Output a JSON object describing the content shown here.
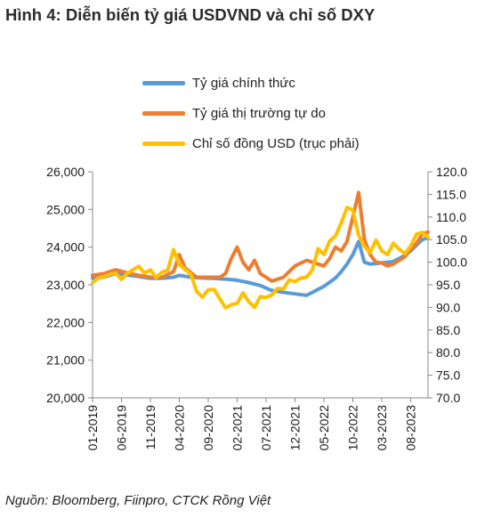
{
  "figure": {
    "title": "Hình 4: Diễn biến tỷ giá USDVND và chỉ số DXY",
    "source": "Nguồn: Bloomberg, Fiinpro, CTCK Rồng Việt"
  },
  "chart_data": {
    "type": "line",
    "title": "Hình 4: Diễn biến tỷ giá USDVND và chỉ số DXY",
    "x_label": "",
    "y_left_label": "",
    "y_right_label": "",
    "x_range": [
      "2019-01",
      "2023-11"
    ],
    "x_ticks": [
      "01-2019",
      "06-2019",
      "11-2019",
      "04-2020",
      "09-2020",
      "02-2021",
      "07-2021",
      "12-2021",
      "05-2022",
      "10-2022",
      "03-2023",
      "08-2023"
    ],
    "y_left_range": [
      20000,
      26000
    ],
    "y_left_ticks": [
      "20,000",
      "21,000",
      "22,000",
      "23,000",
      "24,000",
      "25,000",
      "26,000"
    ],
    "y_right_range": [
      70,
      120
    ],
    "y_right_ticks": [
      "70.0",
      "75.0",
      "80.0",
      "85.0",
      "90.0",
      "95.0",
      "100.0",
      "105.0",
      "110.0",
      "115.0",
      "120.0"
    ],
    "legend_position": "top-center",
    "grid": false,
    "series": [
      {
        "name": "Tỷ giá chính thức",
        "color": "#5b9bd5",
        "axis": "left",
        "points": [
          [
            "2019-01",
            23180
          ],
          [
            "2019-03",
            23200
          ],
          [
            "2019-05",
            23300
          ],
          [
            "2019-07",
            23260
          ],
          [
            "2019-09",
            23220
          ],
          [
            "2019-11",
            23170
          ],
          [
            "2020-01",
            23175
          ],
          [
            "2020-03",
            23200
          ],
          [
            "2020-04",
            23250
          ],
          [
            "2020-06",
            23200
          ],
          [
            "2020-08",
            23180
          ],
          [
            "2020-10",
            23170
          ],
          [
            "2020-12",
            23150
          ],
          [
            "2021-02",
            23120
          ],
          [
            "2021-04",
            23060
          ],
          [
            "2021-06",
            22980
          ],
          [
            "2021-08",
            22850
          ],
          [
            "2021-10",
            22800
          ],
          [
            "2021-12",
            22760
          ],
          [
            "2022-02",
            22720
          ],
          [
            "2022-03",
            22800
          ],
          [
            "2022-05",
            22960
          ],
          [
            "2022-07",
            23180
          ],
          [
            "2022-08",
            23350
          ],
          [
            "2022-09",
            23550
          ],
          [
            "2022-10",
            23800
          ],
          [
            "2022-11",
            24150
          ],
          [
            "2022-12",
            23600
          ],
          [
            "2023-01",
            23550
          ],
          [
            "2023-03",
            23580
          ],
          [
            "2023-05",
            23620
          ],
          [
            "2023-07",
            23780
          ],
          [
            "2023-08",
            23900
          ],
          [
            "2023-09",
            24050
          ],
          [
            "2023-10",
            24200
          ],
          [
            "2023-11",
            24250
          ]
        ]
      },
      {
        "name": "Tỷ giá thị trường tự do",
        "color": "#ed7d31",
        "axis": "left",
        "points": [
          [
            "2019-01",
            23250
          ],
          [
            "2019-03",
            23300
          ],
          [
            "2019-05",
            23400
          ],
          [
            "2019-07",
            23320
          ],
          [
            "2019-09",
            23250
          ],
          [
            "2019-11",
            23200
          ],
          [
            "2020-01",
            23200
          ],
          [
            "2020-03",
            23350
          ],
          [
            "2020-04",
            23800
          ],
          [
            "2020-05",
            23450
          ],
          [
            "2020-07",
            23200
          ],
          [
            "2020-09",
            23200
          ],
          [
            "2020-11",
            23200
          ],
          [
            "2020-12",
            23300
          ],
          [
            "2021-01",
            23700
          ],
          [
            "2021-02",
            24000
          ],
          [
            "2021-03",
            23600
          ],
          [
            "2021-04",
            23400
          ],
          [
            "2021-05",
            23650
          ],
          [
            "2021-06",
            23300
          ],
          [
            "2021-08",
            23100
          ],
          [
            "2021-10",
            23200
          ],
          [
            "2021-12",
            23500
          ],
          [
            "2022-02",
            23650
          ],
          [
            "2022-04",
            23550
          ],
          [
            "2022-05",
            23500
          ],
          [
            "2022-06",
            23700
          ],
          [
            "2022-07",
            24000
          ],
          [
            "2022-08",
            23900
          ],
          [
            "2022-09",
            24150
          ],
          [
            "2022-10",
            24800
          ],
          [
            "2022-11",
            25450
          ],
          [
            "2022-12",
            24200
          ],
          [
            "2023-01",
            23800
          ],
          [
            "2023-02",
            23600
          ],
          [
            "2023-03",
            23580
          ],
          [
            "2023-04",
            23500
          ],
          [
            "2023-05",
            23550
          ],
          [
            "2023-06",
            23650
          ],
          [
            "2023-07",
            23750
          ],
          [
            "2023-08",
            23950
          ],
          [
            "2023-09",
            24100
          ],
          [
            "2023-10",
            24350
          ],
          [
            "2023-11",
            24400
          ]
        ]
      },
      {
        "name": "Chỉ số đồng USD (trục phải)",
        "color": "#ffc000",
        "axis": "right",
        "points": [
          [
            "2019-01",
            95.5
          ],
          [
            "2019-02",
            96.5
          ],
          [
            "2019-03",
            96.8
          ],
          [
            "2019-04",
            97.3
          ],
          [
            "2019-05",
            97.6
          ],
          [
            "2019-06",
            96.2
          ],
          [
            "2019-07",
            97.5
          ],
          [
            "2019-08",
            98.3
          ],
          [
            "2019-09",
            99.1
          ],
          [
            "2019-10",
            97.6
          ],
          [
            "2019-11",
            98.3
          ],
          [
            "2019-12",
            96.6
          ],
          [
            "2020-01",
            97.8
          ],
          [
            "2020-02",
            98.2
          ],
          [
            "2020-03",
            102.8
          ],
          [
            "2020-04",
            99.5
          ],
          [
            "2020-05",
            98.4
          ],
          [
            "2020-06",
            97.3
          ],
          [
            "2020-07",
            93.5
          ],
          [
            "2020-08",
            92.3
          ],
          [
            "2020-09",
            93.9
          ],
          [
            "2020-10",
            94.0
          ],
          [
            "2020-11",
            91.9
          ],
          [
            "2020-12",
            89.9
          ],
          [
            "2021-01",
            90.6
          ],
          [
            "2021-02",
            90.9
          ],
          [
            "2021-03",
            93.2
          ],
          [
            "2021-04",
            91.3
          ],
          [
            "2021-05",
            90.0
          ],
          [
            "2021-06",
            92.4
          ],
          [
            "2021-07",
            92.2
          ],
          [
            "2021-08",
            92.8
          ],
          [
            "2021-09",
            94.2
          ],
          [
            "2021-10",
            94.1
          ],
          [
            "2021-11",
            96.1
          ],
          [
            "2021-12",
            95.7
          ],
          [
            "2022-01",
            96.5
          ],
          [
            "2022-02",
            96.7
          ],
          [
            "2022-03",
            98.3
          ],
          [
            "2022-04",
            103.0
          ],
          [
            "2022-05",
            101.7
          ],
          [
            "2022-06",
            104.7
          ],
          [
            "2022-07",
            105.8
          ],
          [
            "2022-08",
            108.7
          ],
          [
            "2022-09",
            112.1
          ],
          [
            "2022-10",
            111.5
          ],
          [
            "2022-11",
            106.0
          ],
          [
            "2022-12",
            103.5
          ],
          [
            "2023-01",
            102.1
          ],
          [
            "2023-02",
            104.9
          ],
          [
            "2023-03",
            102.5
          ],
          [
            "2023-04",
            101.7
          ],
          [
            "2023-05",
            104.2
          ],
          [
            "2023-06",
            102.9
          ],
          [
            "2023-07",
            101.9
          ],
          [
            "2023-08",
            103.6
          ],
          [
            "2023-09",
            106.2
          ],
          [
            "2023-10",
            106.6
          ],
          [
            "2023-11",
            105.5
          ]
        ]
      }
    ]
  }
}
